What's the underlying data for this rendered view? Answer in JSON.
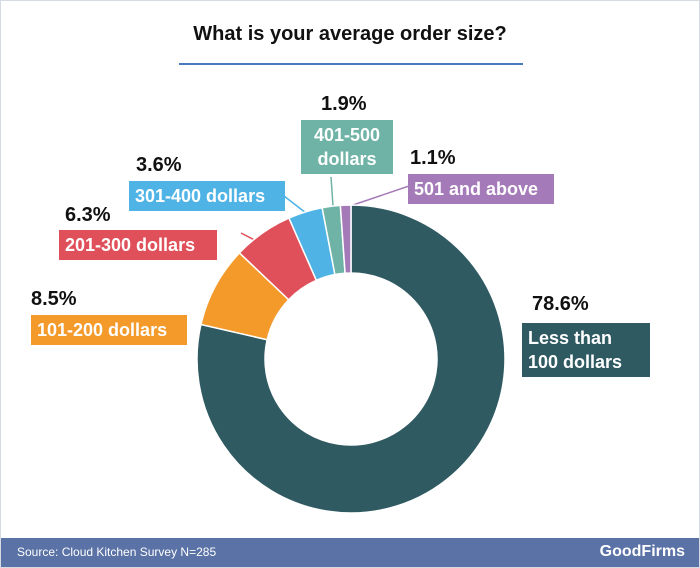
{
  "chart_data": {
    "type": "donut",
    "title": "What is your average order size?",
    "categories": [
      "Less than 100 dollars",
      "101-200 dollars",
      "201-300 dollars",
      "301-400 dollars",
      "401-500 dollars",
      "501 and above"
    ],
    "values": [
      78.6,
      8.5,
      6.3,
      3.6,
      1.9,
      1.1
    ],
    "value_labels": [
      "78.6%",
      "8.5%",
      "6.3%",
      "3.6%",
      "1.9%",
      "1.1%"
    ],
    "colors": [
      "#2f5a62",
      "#f39a2b",
      "#e0505a",
      "#4fb3e6",
      "#6fb3a6",
      "#a57ab8"
    ],
    "source": "Source: Cloud Kitchen Survey N=285",
    "brand": "GoodFirms"
  }
}
